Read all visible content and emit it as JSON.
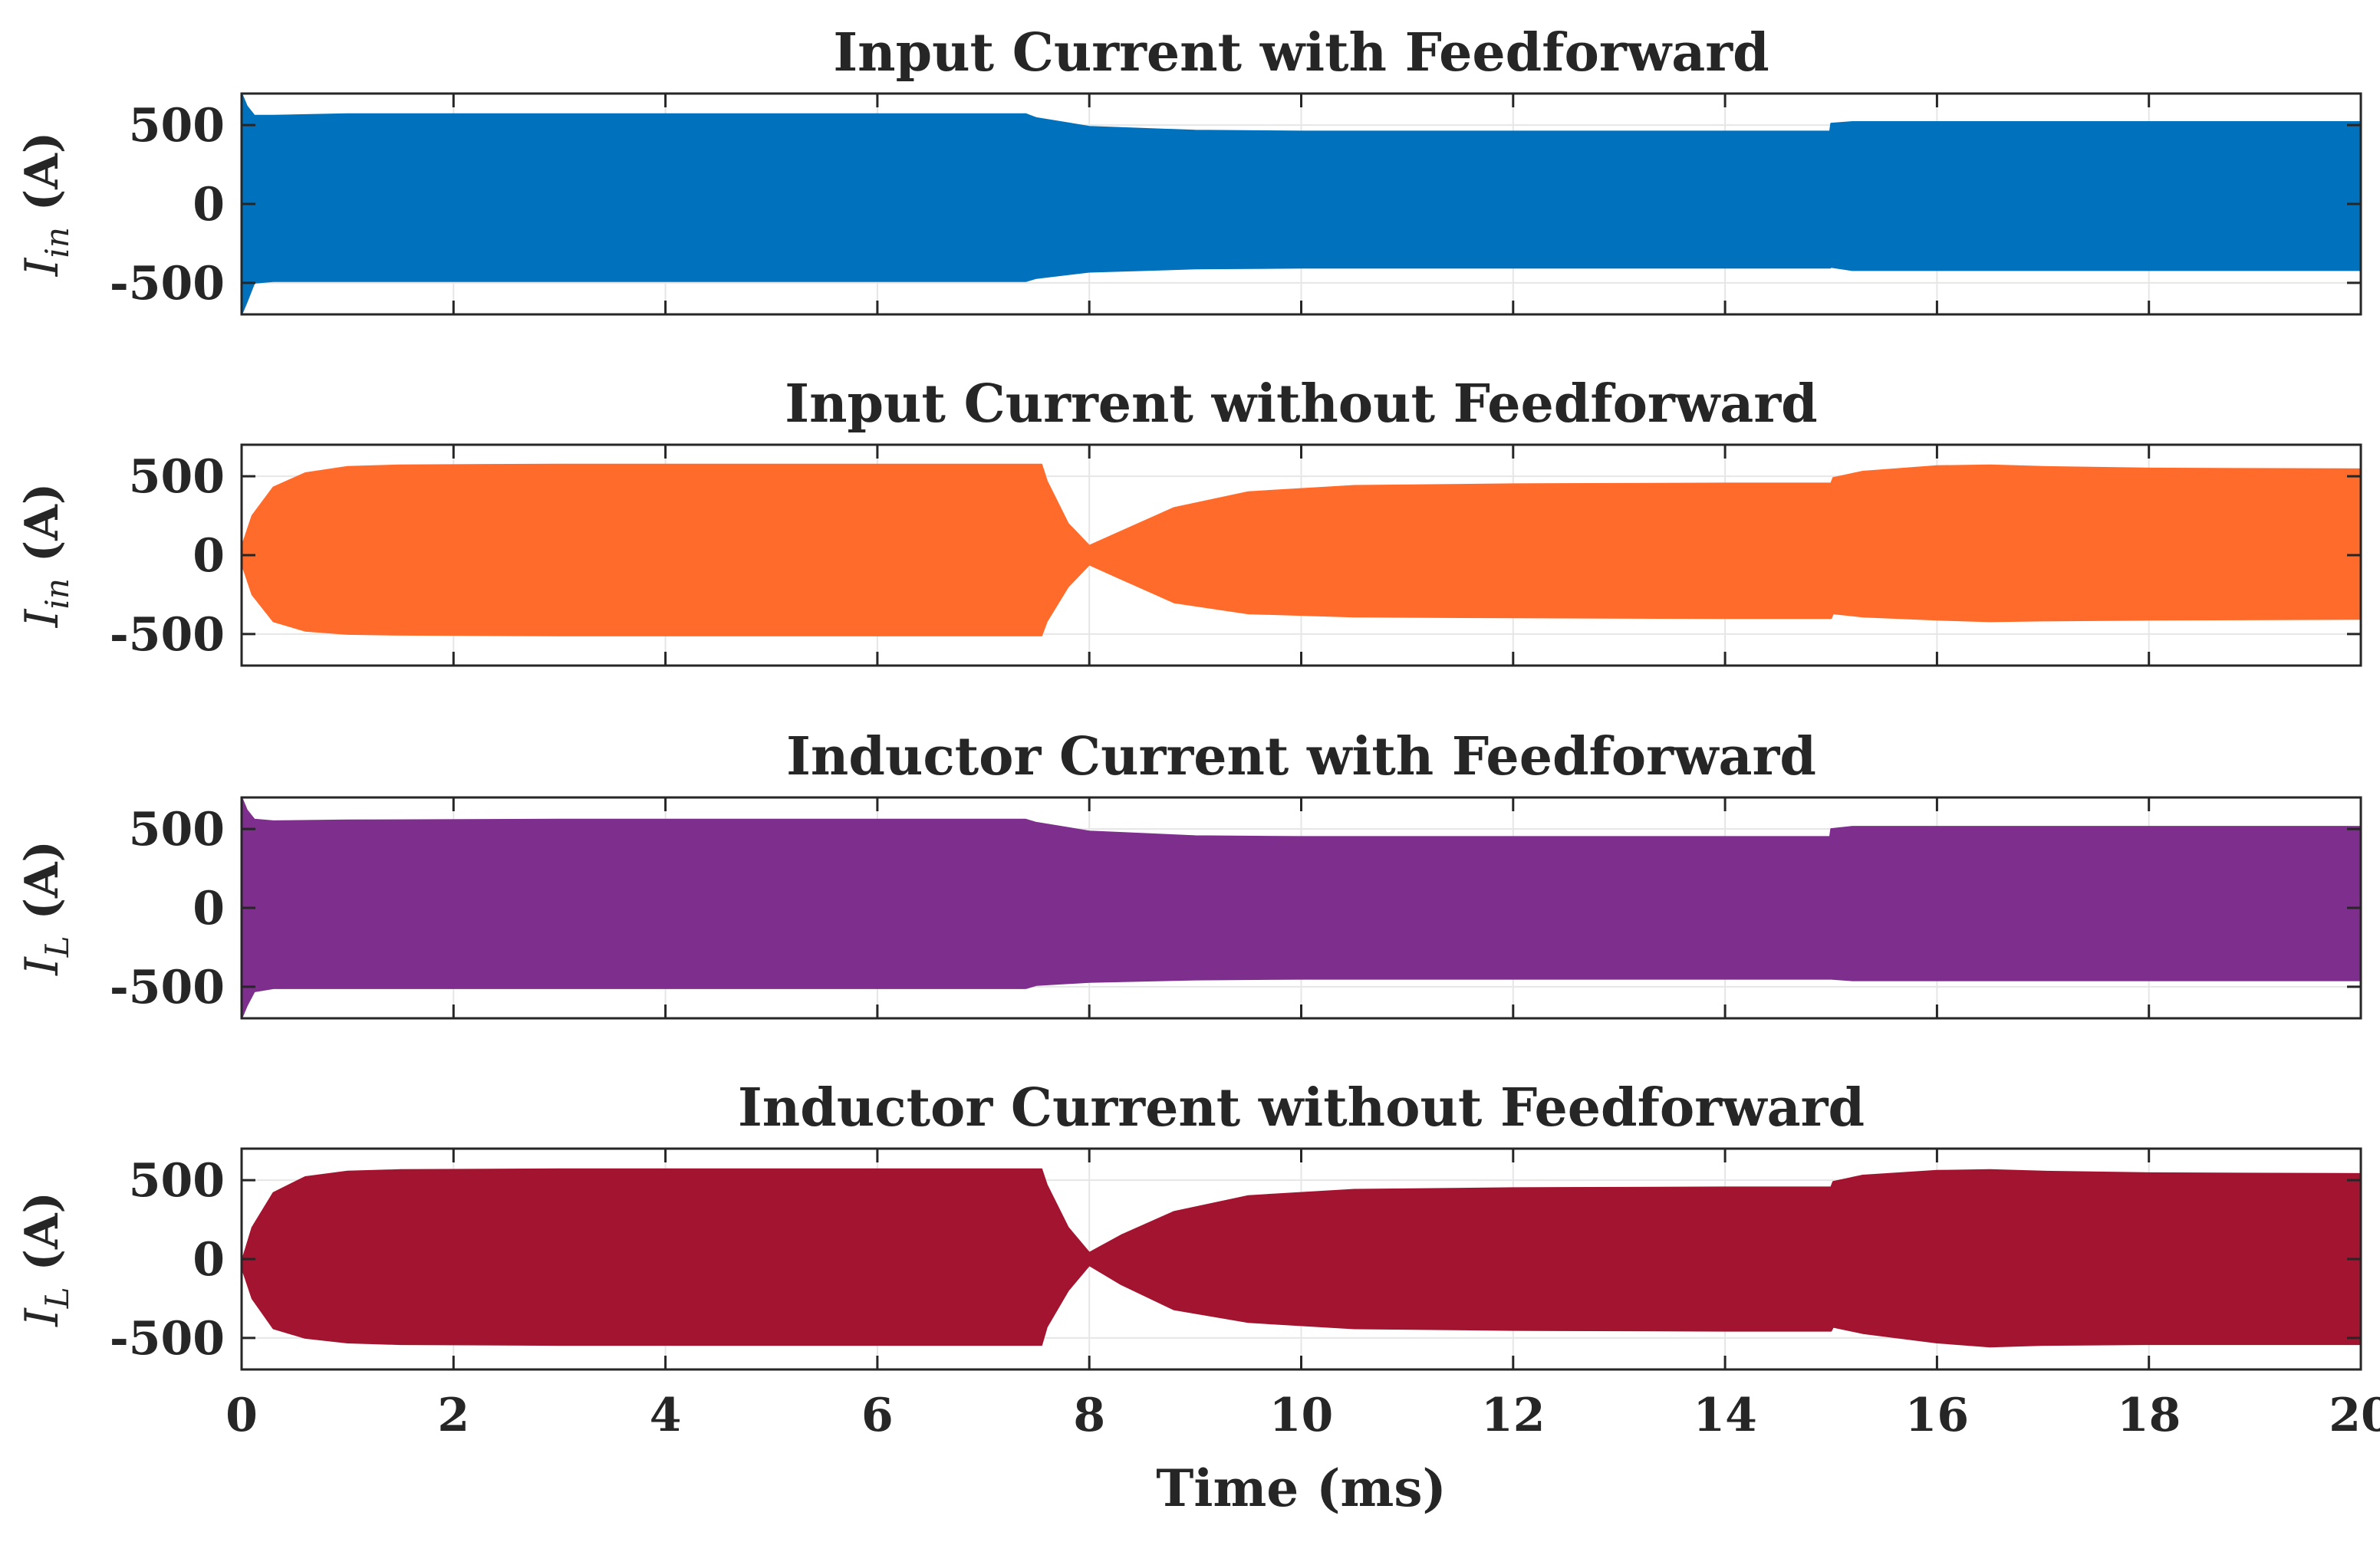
{
  "chart_data": [
    {
      "type": "area",
      "title": "Input Current with Feedforward",
      "ylabel": "I",
      "ylabel_sub": "in",
      "ylabel_unit": " (A)",
      "color": "#0072BD",
      "xlim": [
        0,
        20
      ],
      "ylim": [
        -700,
        700
      ],
      "yticks": [
        500,
        0,
        -500
      ],
      "ytick_labels": [
        "500",
        "0",
        "-500"
      ],
      "xticks": [
        0,
        2,
        4,
        6,
        8,
        10,
        12,
        14,
        16,
        18,
        20
      ],
      "grid": true,
      "x": [
        0,
        0.05,
        0.12,
        0.3,
        1,
        3,
        5,
        7.4,
        7.5,
        8,
        9,
        10,
        12,
        14,
        14.99,
        15.0,
        15.2,
        16,
        18,
        20
      ],
      "upper": [
        700,
        620,
        560,
        560,
        570,
        570,
        570,
        570,
        545,
        490,
        465,
        460,
        460,
        460,
        460,
        510,
        520,
        520,
        520,
        520
      ],
      "lower": [
        -700,
        -620,
        -500,
        -490,
        -490,
        -490,
        -490,
        -490,
        -470,
        -430,
        -410,
        -405,
        -405,
        -405,
        -405,
        -400,
        -420,
        -420,
        -420,
        -420
      ]
    },
    {
      "type": "area",
      "title": "Input Current without Feedforward",
      "ylabel": "I",
      "ylabel_sub": "in",
      "ylabel_unit": " (A)",
      "color": "#FF6B2B",
      "xlim": [
        0,
        20
      ],
      "ylim": [
        -700,
        700
      ],
      "yticks": [
        500,
        0,
        -500
      ],
      "ytick_labels": [
        "500",
        "0",
        "-500"
      ],
      "xticks": [
        0,
        2,
        4,
        6,
        8,
        10,
        12,
        14,
        16,
        18,
        20
      ],
      "grid": true,
      "x": [
        0,
        0.1,
        0.3,
        0.6,
        1,
        1.5,
        3,
        5,
        7.55,
        7.6,
        7.8,
        8,
        8.3,
        8.8,
        9.5,
        10.5,
        12,
        14,
        15,
        15.02,
        15.3,
        16,
        16.5,
        17,
        18,
        20
      ],
      "upper": [
        50,
        250,
        430,
        520,
        560,
        570,
        575,
        575,
        575,
        470,
        200,
        60,
        150,
        300,
        400,
        440,
        450,
        455,
        455,
        490,
        530,
        565,
        570,
        560,
        550,
        545
      ],
      "lower": [
        -50,
        -250,
        -420,
        -480,
        -500,
        -505,
        -510,
        -510,
        -510,
        -420,
        -200,
        -60,
        -150,
        -300,
        -370,
        -390,
        -395,
        -400,
        -400,
        -370,
        -390,
        -410,
        -420,
        -415,
        -410,
        -405
      ]
    },
    {
      "type": "area",
      "title": "Inductor Current with Feedforward",
      "ylabel": "I",
      "ylabel_sub": "L",
      "ylabel_unit": " (A)",
      "color": "#7E2F8E",
      "xlim": [
        0,
        20
      ],
      "ylim": [
        -700,
        700
      ],
      "yticks": [
        500,
        0,
        -500
      ],
      "ytick_labels": [
        "500",
        "0",
        "-500"
      ],
      "xticks": [
        0,
        2,
        4,
        6,
        8,
        10,
        12,
        14,
        16,
        18,
        20
      ],
      "grid": true,
      "x": [
        0,
        0.05,
        0.12,
        0.3,
        1,
        3,
        5,
        7.4,
        7.5,
        8,
        9,
        10,
        12,
        14,
        14.99,
        15.0,
        15.2,
        16,
        18,
        20
      ],
      "upper": [
        700,
        620,
        560,
        550,
        555,
        560,
        560,
        560,
        540,
        485,
        455,
        450,
        450,
        450,
        450,
        500,
        515,
        515,
        515,
        515
      ],
      "lower": [
        -700,
        -620,
        -530,
        -510,
        -510,
        -510,
        -510,
        -510,
        -490,
        -470,
        -455,
        -450,
        -450,
        -450,
        -450,
        -450,
        -460,
        -460,
        -460,
        -460
      ]
    },
    {
      "type": "area",
      "title": "Inductor Current without Feedforward",
      "ylabel": "I",
      "ylabel_sub": "L",
      "ylabel_unit": " (A)",
      "color": "#A2142F",
      "xlim": [
        0,
        20
      ],
      "ylim": [
        -700,
        700
      ],
      "yticks": [
        500,
        0,
        -500
      ],
      "ytick_labels": [
        "500",
        "0",
        "-500"
      ],
      "xticks": [
        0,
        2,
        4,
        6,
        8,
        10,
        12,
        14,
        16,
        18,
        20
      ],
      "grid": true,
      "x": [
        0,
        0.1,
        0.3,
        0.6,
        1,
        1.5,
        3,
        5,
        7.55,
        7.6,
        7.8,
        8,
        8.3,
        8.8,
        9.5,
        10.5,
        12,
        14,
        15,
        15.02,
        15.3,
        16,
        16.5,
        17,
        18,
        20
      ],
      "upper": [
        -20,
        200,
        420,
        520,
        555,
        565,
        570,
        570,
        570,
        470,
        200,
        40,
        150,
        300,
        400,
        440,
        450,
        455,
        455,
        490,
        530,
        560,
        565,
        555,
        545,
        540
      ],
      "lower": [
        -50,
        -250,
        -440,
        -500,
        -530,
        -540,
        -545,
        -545,
        -545,
        -430,
        -200,
        -40,
        -160,
        -320,
        -400,
        -440,
        -450,
        -455,
        -455,
        -430,
        -470,
        -530,
        -555,
        -545,
        -540,
        -540
      ]
    }
  ],
  "shared_xlabel": "Time (ms)",
  "shared_xtick_labels": [
    "0",
    "2",
    "4",
    "6",
    "8",
    "10",
    "12",
    "14",
    "16",
    "18",
    "20"
  ]
}
